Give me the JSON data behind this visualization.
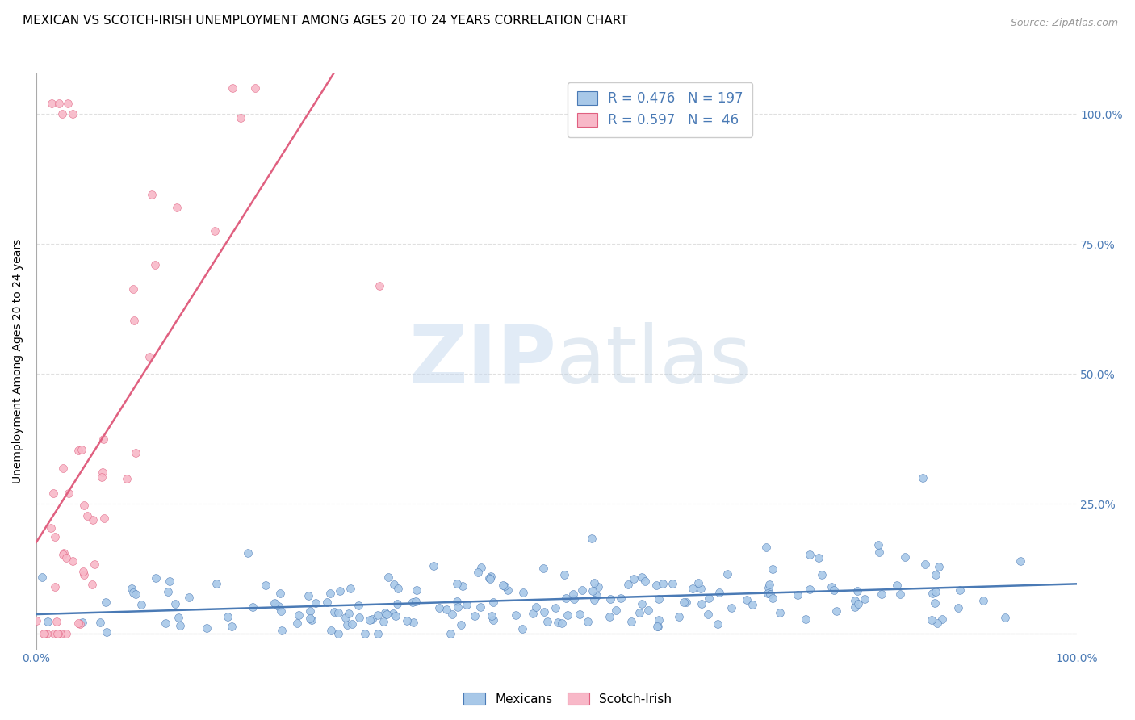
{
  "title": "MEXICAN VS SCOTCH-IRISH UNEMPLOYMENT AMONG AGES 20 TO 24 YEARS CORRELATION CHART",
  "source": "Source: ZipAtlas.com",
  "ylabel": "Unemployment Among Ages 20 to 24 years",
  "xlim": [
    0,
    1
  ],
  "ylim": [
    -0.03,
    1.08
  ],
  "xticks": [
    0.0,
    0.1,
    0.2,
    0.3,
    0.4,
    0.5,
    0.6,
    0.7,
    0.8,
    0.9,
    1.0
  ],
  "xticklabels": [
    "0.0%",
    "",
    "",
    "",
    "",
    "",
    "",
    "",
    "",
    "",
    "100.0%"
  ],
  "yticks": [
    0.0,
    0.25,
    0.5,
    0.75,
    1.0
  ],
  "ylabels_right": [
    "",
    "25.0%",
    "50.0%",
    "75.0%",
    "100.0%"
  ],
  "ylabels_left": [
    "",
    "",
    "",
    "",
    ""
  ],
  "mexican_color": "#a8c8e8",
  "scotch_color": "#f8b8c8",
  "mexican_line_color": "#4a7ab5",
  "scotch_line_color": "#e06080",
  "mexican_R": 0.476,
  "mexican_N": 197,
  "scotch_R": 0.597,
  "scotch_N": 46,
  "legend_label_1": "Mexicans",
  "legend_label_2": "Scotch-Irish",
  "watermark_zip": "ZIP",
  "watermark_atlas": "atlas",
  "background_color": "#ffffff",
  "grid_color": "#e0e0e0",
  "title_fontsize": 11,
  "axis_label_color": "#4a7ab5",
  "tick_label_color": "#4a7ab5"
}
